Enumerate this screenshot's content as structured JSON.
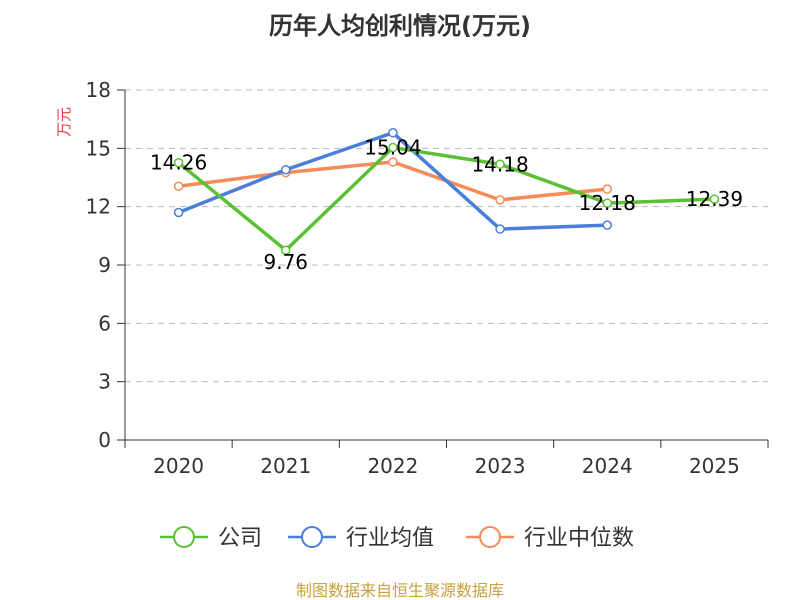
{
  "chart_data": {
    "type": "line",
    "title": "历年人均创利情况(万元)",
    "ylabel": "万元",
    "xlabel": "",
    "categories": [
      "2020",
      "2021",
      "2022",
      "2023",
      "2024",
      "2025"
    ],
    "ylim": [
      0,
      18
    ],
    "yticks": [
      0,
      3,
      6,
      9,
      12,
      15,
      18
    ],
    "grid": true,
    "legend_position": "bottom",
    "series": [
      {
        "name": "公司",
        "color": "#5ac132",
        "values": [
          14.26,
          9.76,
          15.04,
          14.18,
          12.18,
          12.39
        ],
        "data_labels": [
          "14.26",
          "9.76",
          "15.04",
          "14.18",
          "12.18",
          "12.39"
        ]
      },
      {
        "name": "行业均值",
        "color": "#4a7fd9",
        "values": [
          11.7,
          13.9,
          15.8,
          10.85,
          11.05,
          null
        ]
      },
      {
        "name": "行业中位数",
        "color": "#f48b5a",
        "values": [
          13.05,
          13.75,
          14.3,
          12.35,
          12.9,
          null
        ]
      }
    ]
  },
  "source": "制图数据来自恒生聚源数据库"
}
